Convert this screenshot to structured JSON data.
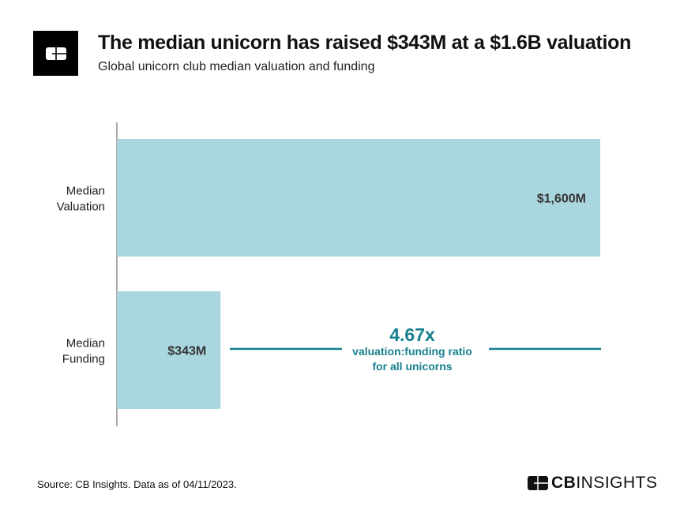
{
  "header": {
    "title": "The median unicorn has raised $343M at a $1.6B valuation",
    "subtitle": "Global unicorn club median valuation and funding",
    "logo_icon": "cb-insights-logo-icon"
  },
  "chart_data": {
    "type": "bar",
    "orientation": "horizontal",
    "categories": [
      "Median Valuation",
      "Median Funding"
    ],
    "category_label_lines": [
      [
        "Median",
        "Valuation"
      ],
      [
        "Median",
        "Funding"
      ]
    ],
    "values": [
      1600,
      343
    ],
    "data_labels": [
      "$1,600M",
      "$343M"
    ],
    "unit": "$M",
    "xlim": [
      0,
      1600
    ],
    "grid": false,
    "bar_color": "#aad6df",
    "annotation": {
      "value": "4.67x",
      "text_lines": [
        "valuation:funding ratio",
        "for all unicorns"
      ],
      "color": "#17808f"
    }
  },
  "footer": {
    "source": "Source: CB Insights. Data as of 04/11/2023.",
    "brand_bold": "CB",
    "brand_light": "INSIGHTS"
  }
}
